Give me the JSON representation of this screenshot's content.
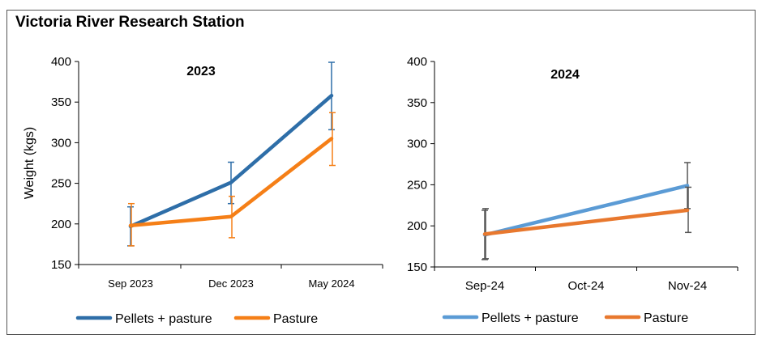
{
  "figure_title": "Victoria River Research Station",
  "colors": {
    "pellets_2023": "#2e6ea8",
    "pasture_2023": "#f57f17",
    "pellets_2024": "#5b9bd5",
    "pasture_2024": "#e8782e",
    "errorbar_pellets_2023": "#2e6ea8",
    "errorbar_pasture_2023": "#f57f17",
    "errorbar_2024": "#555555"
  },
  "chart_data": [
    {
      "type": "line",
      "title": "2023",
      "xlabel": "",
      "ylabel": "Weight (kgs)",
      "categories": [
        "Sep 2023",
        "Dec 2023",
        "May 2024"
      ],
      "ylim": [
        150,
        400
      ],
      "yticks": [
        "150",
        "200",
        "250",
        "300",
        "350",
        "400"
      ],
      "grid": false,
      "legend_position": "bottom",
      "series": [
        {
          "name": "Pellets + pasture",
          "values": [
            197,
            251,
            358
          ],
          "err_low": [
            173,
            225,
            316
          ],
          "err_high": [
            221,
            276,
            399
          ]
        },
        {
          "name": "Pasture",
          "values": [
            198,
            209,
            305
          ],
          "err_low": [
            173,
            183,
            272
          ],
          "err_high": [
            225,
            234,
            337
          ]
        }
      ]
    },
    {
      "type": "line",
      "title": "2024",
      "xlabel": "",
      "ylabel": "",
      "categories": [
        "Sep-24",
        "Oct-24",
        "Nov-24"
      ],
      "ylim": [
        150,
        400
      ],
      "yticks": [
        "150",
        "200",
        "250",
        "300",
        "350",
        "400"
      ],
      "grid": false,
      "legend_position": "bottom",
      "series": [
        {
          "name": "Pellets + pasture",
          "points": [
            [
              0,
              189
            ],
            [
              2,
              249
            ]
          ],
          "err_low": [
            159,
            221
          ],
          "err_high": [
            219,
            277
          ]
        },
        {
          "name": "Pasture",
          "points": [
            [
              0,
              190
            ],
            [
              2,
              219
            ]
          ],
          "err_low": [
            160,
            192
          ],
          "err_high": [
            221,
            247
          ]
        }
      ]
    }
  ]
}
